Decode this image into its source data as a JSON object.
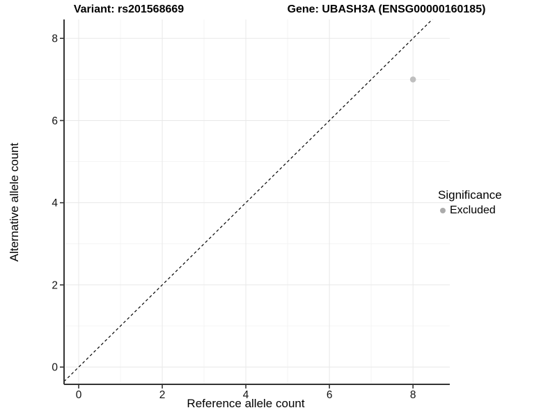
{
  "colors": {
    "background": "#ffffff",
    "axis": "#333333",
    "grid_major": "#e8e8e8",
    "grid_minor": "#f4f4f4",
    "tick_label": "#111111",
    "text": "#000000"
  },
  "chart_data": {
    "type": "scatter",
    "titles": {
      "left": "Variant: rs201568669",
      "right": "Gene: UBASH3A (ENSG00000160185)"
    },
    "xlabel": "Reference allele count",
    "ylabel": "Alternative allele count",
    "xlim": [
      -0.35,
      8.88
    ],
    "ylim": [
      -0.42,
      8.46
    ],
    "x_ticks": [
      0,
      2,
      4,
      6,
      8
    ],
    "y_ticks": [
      0,
      2,
      4,
      6,
      8
    ],
    "x_minor_ticks": [
      1,
      3,
      5,
      7
    ],
    "y_minor_ticks": [
      1,
      3,
      5,
      7
    ],
    "grid": "major+minor",
    "reference_line": {
      "type": "identity",
      "slope": 1,
      "intercept": 0,
      "style": "dashed",
      "color": "#000000"
    },
    "series": [
      {
        "name": "Excluded",
        "color": "#bfbfbf",
        "point_radius": 4.3,
        "points": [
          {
            "x": 8,
            "y": 7
          }
        ]
      }
    ],
    "legend": {
      "title": "Significance",
      "position": "right",
      "entries": [
        {
          "label": "Excluded",
          "color": "#ababab",
          "marker": "circle"
        }
      ]
    }
  }
}
